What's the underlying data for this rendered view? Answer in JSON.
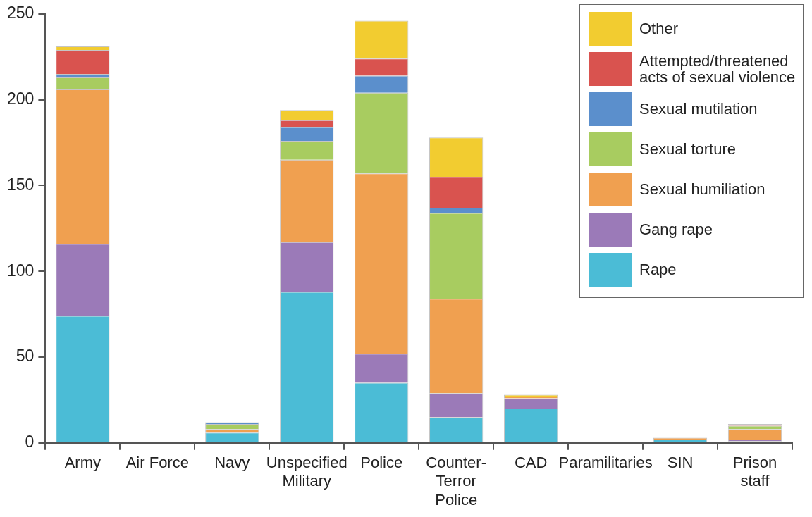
{
  "chart_data": {
    "type": "bar",
    "stacked": true,
    "legend": "top right",
    "grid": false,
    "categories": [
      "Army",
      "Air Force",
      "Navy",
      "Unspecified Military",
      "Police",
      "Counter-Terror Police",
      "CAD",
      "Paramilitaries",
      "SIN",
      "Prison staff"
    ],
    "ylim": [
      0,
      250
    ],
    "yticks": [
      0,
      50,
      100,
      150,
      200,
      250
    ],
    "series": [
      {
        "name": "Rape",
        "color": "#4bbcd6",
        "values": [
          74,
          0,
          6,
          88,
          35,
          15,
          20,
          0,
          2,
          1
        ]
      },
      {
        "name": "Gang rape",
        "color": "#9b7ab8",
        "values": [
          42,
          0,
          0,
          29,
          17,
          14,
          6,
          0,
          0,
          1
        ]
      },
      {
        "name": "Sexual humiliation",
        "color": "#f0a050",
        "values": [
          90,
          0,
          2,
          48,
          105,
          55,
          1,
          0,
          1,
          6
        ]
      },
      {
        "name": "Sexual torture",
        "color": "#a8cc60",
        "values": [
          7,
          0,
          3,
          11,
          47,
          50,
          0,
          0,
          0,
          2
        ]
      },
      {
        "name": "Sexual mutilation",
        "color": "#5b8fcc",
        "values": [
          2,
          0,
          1,
          8,
          10,
          3,
          0,
          0,
          0,
          0
        ]
      },
      {
        "name": "Attempted/threatened acts of sexual violence",
        "color": "#d9534f",
        "values": [
          14,
          0,
          0,
          4,
          10,
          18,
          0,
          0,
          0,
          1
        ]
      },
      {
        "name": "Other",
        "color": "#f2cc30",
        "values": [
          2,
          0,
          0,
          6,
          22,
          23,
          1,
          0,
          0,
          0
        ]
      }
    ]
  }
}
